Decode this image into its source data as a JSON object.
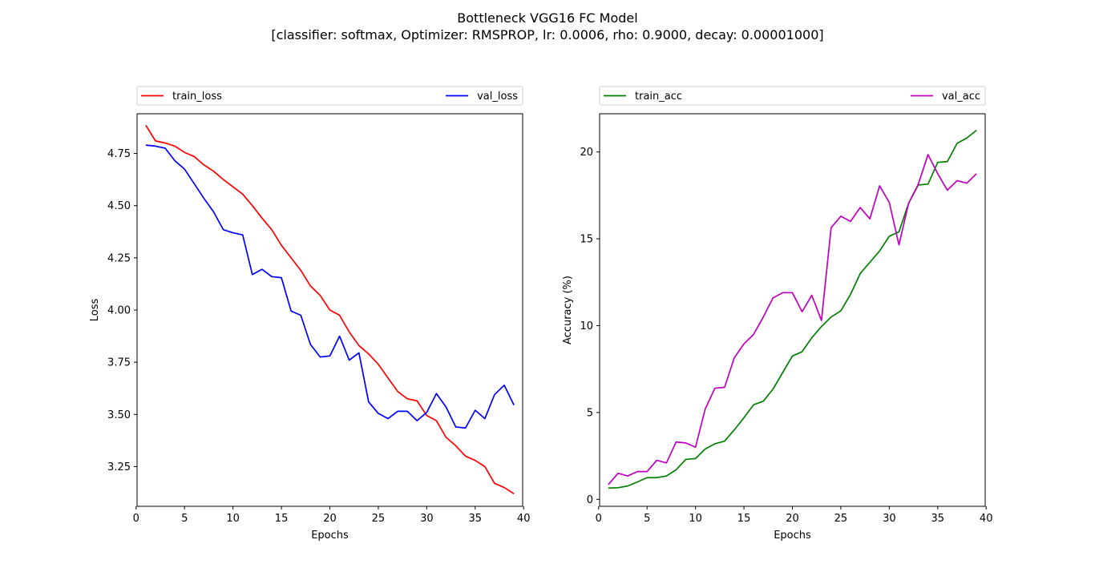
{
  "figure": {
    "title_line1": "Bottleneck VGG16 FC Model",
    "title_line2": "[classifier: softmax, Optimizer: RMSPROP, lr: 0.0006, rho: 0.9000, decay: 0.00001000]"
  },
  "chart_data": [
    {
      "type": "line",
      "xlabel": "Epochs",
      "ylabel": "Loss",
      "xlim": [
        0.1,
        39.9
      ],
      "ylim": [
        3.06,
        4.94
      ],
      "xticks": [
        0,
        5,
        10,
        15,
        20,
        25,
        30,
        35,
        40
      ],
      "yticks": [
        3.25,
        3.5,
        3.75,
        4.0,
        4.25,
        4.5,
        4.75
      ],
      "ytick_labels": [
        "3.25",
        "3.50",
        "3.75",
        "4.00",
        "4.25",
        "4.50",
        "4.75"
      ],
      "legend": "top-outside",
      "grid": false,
      "x": [
        1,
        2,
        3,
        4,
        5,
        6,
        7,
        8,
        9,
        10,
        11,
        12,
        13,
        14,
        15,
        16,
        17,
        18,
        19,
        20,
        21,
        22,
        23,
        24,
        25,
        26,
        27,
        28,
        29,
        30,
        31,
        32,
        33,
        34,
        35,
        36,
        37,
        38,
        39
      ],
      "series": [
        {
          "name": "train_loss",
          "color": "#ff0000",
          "values": [
            4.885,
            4.81,
            4.8,
            4.785,
            4.755,
            4.735,
            4.695,
            4.665,
            4.625,
            4.59,
            4.555,
            4.5,
            4.44,
            4.385,
            4.31,
            4.25,
            4.19,
            4.115,
            4.07,
            4.0,
            3.975,
            3.895,
            3.83,
            3.79,
            3.74,
            3.675,
            3.61,
            3.575,
            3.565,
            3.495,
            3.47,
            3.39,
            3.35,
            3.3,
            3.28,
            3.25,
            3.17,
            3.15,
            3.12
          ]
        },
        {
          "name": "val_loss",
          "color": "#0000ff",
          "values": [
            4.79,
            4.785,
            4.775,
            4.715,
            4.675,
            4.605,
            4.535,
            4.47,
            4.385,
            4.37,
            4.36,
            4.17,
            4.195,
            4.16,
            4.155,
            3.995,
            3.975,
            3.835,
            3.775,
            3.78,
            3.875,
            3.76,
            3.795,
            3.56,
            3.505,
            3.48,
            3.515,
            3.515,
            3.47,
            3.51,
            3.6,
            3.535,
            3.44,
            3.435,
            3.52,
            3.48,
            3.595,
            3.64,
            3.545
          ]
        }
      ]
    },
    {
      "type": "line",
      "xlabel": "Epochs",
      "ylabel": "Accuracy (%)",
      "xlim": [
        0.1,
        39.9
      ],
      "ylim": [
        -0.4,
        22.2
      ],
      "xticks": [
        0,
        5,
        10,
        15,
        20,
        25,
        30,
        35,
        40
      ],
      "yticks": [
        0,
        5,
        10,
        15,
        20
      ],
      "ytick_labels": [
        "0",
        "5",
        "10",
        "15",
        "20"
      ],
      "legend": "top-outside",
      "grid": false,
      "x": [
        1,
        2,
        3,
        4,
        5,
        6,
        7,
        8,
        9,
        10,
        11,
        12,
        13,
        14,
        15,
        16,
        17,
        18,
        19,
        20,
        21,
        22,
        23,
        24,
        25,
        26,
        27,
        28,
        29,
        30,
        31,
        32,
        33,
        34,
        35,
        36,
        37,
        38,
        39
      ],
      "series": [
        {
          "name": "train_acc",
          "color": "#008000",
          "values": [
            0.65,
            0.67,
            0.77,
            1.0,
            1.25,
            1.25,
            1.35,
            1.7,
            2.3,
            2.35,
            2.9,
            3.2,
            3.35,
            4.0,
            4.7,
            5.45,
            5.65,
            6.35,
            7.3,
            8.25,
            8.5,
            9.3,
            9.95,
            10.5,
            10.85,
            11.8,
            13.0,
            13.65,
            14.3,
            15.15,
            15.4,
            17.05,
            18.1,
            18.15,
            19.4,
            19.45,
            20.5,
            20.8,
            21.25
          ]
        },
        {
          "name": "val_acc",
          "color": "#bf00bf",
          "values": [
            0.85,
            1.5,
            1.35,
            1.6,
            1.6,
            2.25,
            2.1,
            3.3,
            3.25,
            3.0,
            5.2,
            6.4,
            6.45,
            8.15,
            8.95,
            9.5,
            10.5,
            11.6,
            11.9,
            11.9,
            10.8,
            11.75,
            10.3,
            15.65,
            16.3,
            16.0,
            16.8,
            16.15,
            18.05,
            17.1,
            14.65,
            17.05,
            18.15,
            19.85,
            18.75,
            17.8,
            18.35,
            18.2,
            18.75
          ]
        }
      ]
    }
  ]
}
